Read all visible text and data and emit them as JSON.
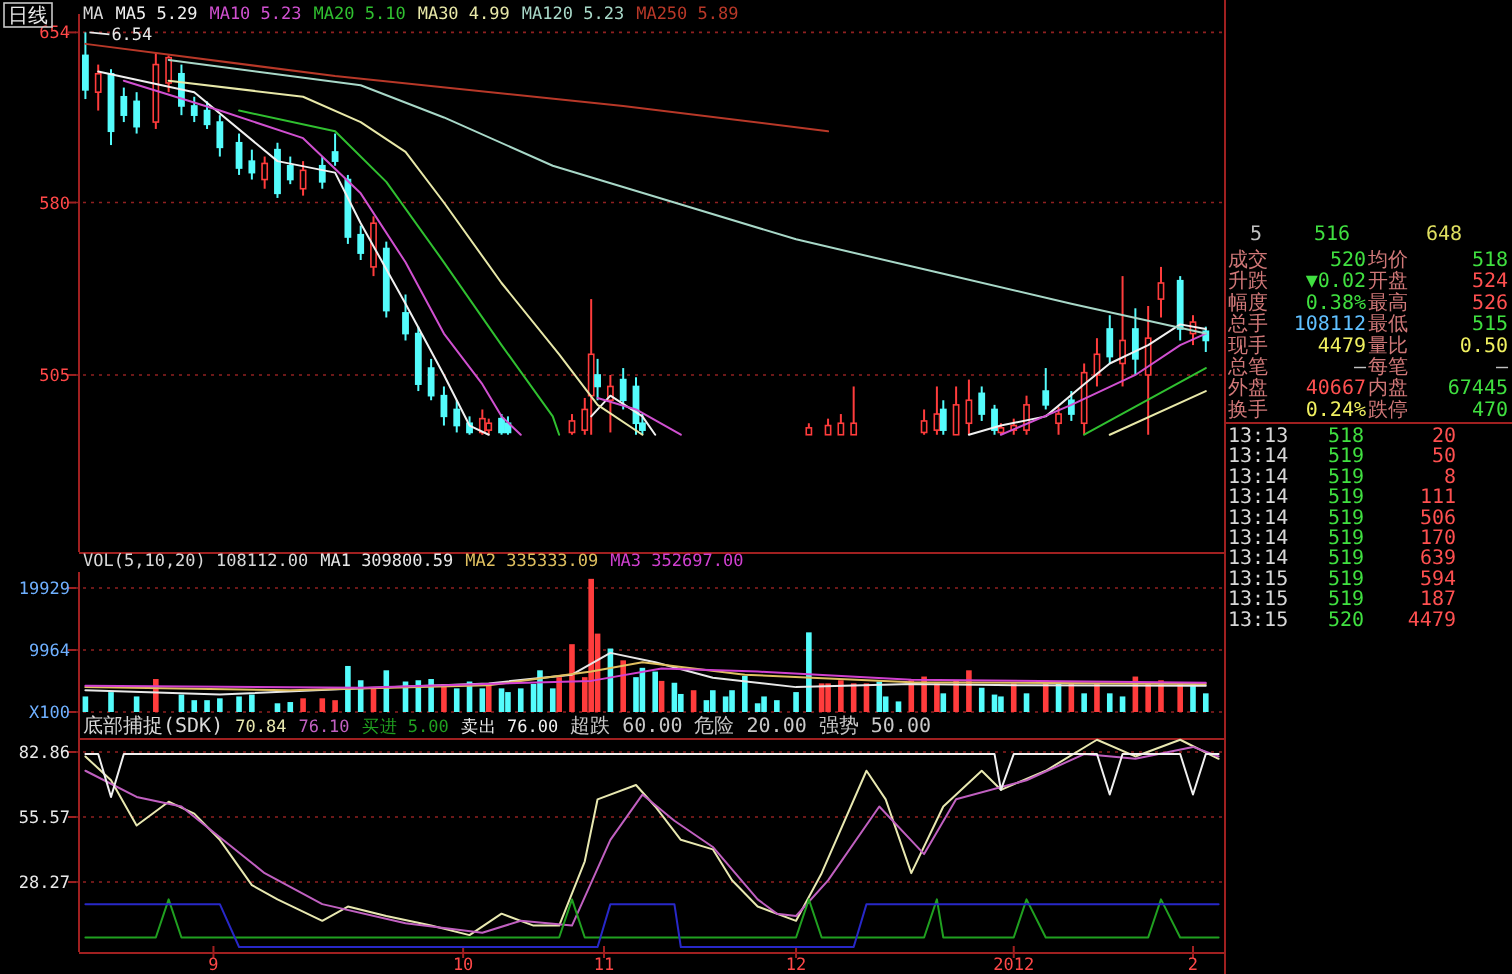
{
  "chart_data": [
    {
      "type": "candlestick",
      "title": "日线",
      "legend_title": "MA",
      "legend": "top left",
      "grid": "y",
      "tick_labels": "y",
      "xlim": [
        "2011-08-11",
        "2012-02-06"
      ],
      "ylim": [
        428,
        662
      ],
      "yticks": [
        654,
        580,
        505
      ],
      "annotations": [
        {
          "text": "6.54",
          "x": "2011-08-12",
          "y": 654
        }
      ],
      "series": [
        {
          "type": "candlestick",
          "color": "#ff3c3c",
          "x": [
            "2011-08-14",
            "2011-08-23",
            "2011-08-25",
            "2011-09-09",
            "2011-09-15",
            "2011-09-26",
            "2011-10-13",
            "2011-10-14",
            "2011-10-27",
            "2011-10-29",
            "2011-10-30",
            "2011-11-02",
            "2011-12-03",
            "2011-12-06",
            "2011-12-08",
            "2011-12-10",
            "2011-12-21",
            "2011-12-23",
            "2011-12-26",
            "2011-12-28",
            "2012-01-02",
            "2012-01-04",
            "2012-01-06",
            "2012-01-11",
            "2012-01-15",
            "2012-01-17",
            "2012-01-21",
            "2012-01-25",
            "2012-01-27",
            "2012-02-01"
          ],
          "ohlc": [
            [
              628,
              640,
              620,
              636
            ],
            [
              615,
              645,
              612,
              640
            ],
            [
              632,
              644,
              628,
              643
            ],
            [
              590,
              600,
              586,
              597
            ],
            [
              586,
              598,
              583,
              594
            ],
            [
              552,
              574,
              548,
              571
            ],
            [
              480,
              490,
              479,
              486
            ],
            [
              481,
              486,
              479,
              484
            ],
            [
              480,
              488,
              479,
              485
            ],
            [
              481,
              495,
              479,
              490
            ],
            [
              496,
              538,
              479,
              514
            ],
            [
              494,
              505,
              480,
              500
            ],
            [
              479,
              484,
              479,
              482
            ],
            [
              479,
              486,
              479,
              483
            ],
            [
              479,
              488,
              479,
              484
            ],
            [
              479,
              500,
              479,
              484
            ],
            [
              480,
              490,
              479,
              485
            ],
            [
              481,
              500,
              479,
              488
            ],
            [
              479,
              500,
              479,
              492
            ],
            [
              484,
              503,
              479,
              494
            ],
            [
              480,
              484,
              479,
              482
            ],
            [
              481,
              486,
              479,
              483
            ],
            [
              481,
              496,
              479,
              492
            ],
            [
              484,
              491,
              479,
              488
            ],
            [
              484,
              510,
              479,
              506
            ],
            [
              505,
              521,
              500,
              514
            ],
            [
              510,
              548,
              500,
              520
            ],
            [
              505,
              535,
              479,
              521
            ],
            [
              538,
              552,
              530,
              545
            ],
            [
              523,
              531,
              518,
              528
            ]
          ]
        },
        {
          "type": "candlestick",
          "color": "#54fcfc",
          "x": [
            "2011-08-12",
            "2011-08-16",
            "2011-08-18",
            "2011-08-20",
            "2011-08-27",
            "2011-08-29",
            "2011-08-31",
            "2011-09-02",
            "2011-09-05",
            "2011-09-07",
            "2011-09-11",
            "2011-09-13",
            "2011-09-18",
            "2011-09-20",
            "2011-09-22",
            "2011-09-24",
            "2011-09-28",
            "2011-10-01",
            "2011-10-03",
            "2011-10-05",
            "2011-10-07",
            "2011-10-09",
            "2011-10-11",
            "2011-10-16",
            "2011-10-17",
            "2011-10-31",
            "2011-11-04",
            "2011-11-06",
            "2011-11-07",
            "2011-12-24",
            "2011-12-30",
            "2012-01-01",
            "2012-01-09",
            "2012-01-13",
            "2012-01-19",
            "2012-01-23",
            "2012-01-30",
            "2012-02-03"
          ],
          "ohlc": [
            [
              644,
              654,
              625,
              629
            ],
            [
              636,
              638,
              605,
              611
            ],
            [
              626,
              630,
              615,
              618
            ],
            [
              624,
              628,
              610,
              613
            ],
            [
              636,
              640,
              618,
              622
            ],
            [
              622,
              626,
              615,
              618
            ],
            [
              620,
              624,
              612,
              614
            ],
            [
              615,
              618,
              600,
              604
            ],
            [
              606,
              610,
              592,
              595
            ],
            [
              598,
              603,
              590,
              593
            ],
            [
              603,
              606,
              582,
              584
            ],
            [
              596,
              600,
              588,
              590
            ],
            [
              596,
              600,
              586,
              589
            ],
            [
              602,
              610,
              596,
              598
            ],
            [
              590,
              592,
              562,
              565
            ],
            [
              566,
              570,
              555,
              558
            ],
            [
              560,
              563,
              530,
              533
            ],
            [
              532,
              540,
              520,
              523
            ],
            [
              523,
              526,
              498,
              501
            ],
            [
              508,
              512,
              494,
              496
            ],
            [
              496,
              500,
              483,
              487
            ],
            [
              490,
              494,
              480,
              483
            ],
            [
              484,
              487,
              479,
              480
            ],
            [
              486,
              488,
              479,
              480
            ],
            [
              484,
              487,
              479,
              480
            ],
            [
              505,
              512,
              494,
              500
            ],
            [
              503,
              508,
              490,
              494
            ],
            [
              500,
              504,
              479,
              484
            ],
            [
              484,
              488,
              479,
              481
            ],
            [
              490,
              494,
              479,
              481
            ],
            [
              497,
              500,
              485,
              488
            ],
            [
              490,
              492,
              479,
              481
            ],
            [
              498,
              508,
              490,
              492
            ],
            [
              494,
              498,
              485,
              488
            ],
            [
              525,
              531,
              510,
              513
            ],
            [
              525,
              534,
              505,
              512
            ],
            [
              546,
              548,
              520,
              525
            ],
            [
              524,
              526,
              515,
              520
            ]
          ]
        },
        {
          "type": "line",
          "name": "MA5 5.29",
          "color": "#f0f0f0",
          "x": [
            "2011-08-14",
            "2011-08-29",
            "2011-09-11",
            "2011-09-20",
            "2011-09-24",
            "2011-10-01",
            "2011-10-07",
            "2011-10-11",
            "2011-10-14",
            "2011-10-22",
            "2011-10-30",
            "2011-11-02",
            "2011-11-07",
            "2011-11-09",
            "2011-12-01",
            "2011-12-28",
            "2012-01-02",
            "2012-01-09",
            "2012-01-15",
            "2012-01-19",
            "2012-01-25",
            "2012-01-30",
            "2012-02-03"
          ],
          "values": [
            637,
            628,
            598,
            593,
            571,
            536,
            505,
            483,
            479,
            null,
            487,
            496,
            487,
            479,
            null,
            479,
            483,
            487,
            501,
            510,
            518,
            527,
            525
          ]
        },
        {
          "type": "line",
          "name": "MA10 5.23",
          "color": "#d050d0",
          "x": [
            "2011-08-18",
            "2011-09-02",
            "2011-09-15",
            "2011-09-24",
            "2011-10-01",
            "2011-10-07",
            "2011-10-13",
            "2011-10-16",
            "2011-10-19",
            "2011-10-25",
            "2011-10-31",
            "2011-11-06",
            "2011-11-13",
            "2011-12-01",
            "2012-01-02",
            "2012-01-13",
            "2012-01-23",
            "2012-01-30",
            "2012-02-03"
          ],
          "values": [
            633,
            620,
            608,
            584,
            554,
            523,
            501,
            487,
            479,
            null,
            495,
            490,
            479,
            null,
            479,
            492,
            505,
            518,
            523
          ]
        },
        {
          "type": "line",
          "name": "MA20 5.10",
          "color": "#30c030",
          "x": [
            "2011-09-05",
            "2011-09-20",
            "2011-09-28",
            "2011-10-07",
            "2011-10-16",
            "2011-10-24",
            "2011-10-25",
            "2011-12-01",
            "2012-01-15",
            "2012-02-03"
          ],
          "values": [
            620,
            611,
            589,
            554,
            518,
            487,
            479,
            null,
            479,
            508
          ]
        },
        {
          "type": "line",
          "name": "MA30 4.99",
          "color": "#e8e8a8",
          "x": [
            "2011-08-25",
            "2011-09-15",
            "2011-09-24",
            "2011-10-01",
            "2011-10-07",
            "2011-10-16",
            "2011-10-25",
            "2011-10-31",
            "2011-11-07",
            "2011-12-01",
            "2012-01-19",
            "2012-02-03"
          ],
          "values": [
            633,
            626,
            615,
            602,
            580,
            545,
            514,
            492,
            479,
            null,
            479,
            498
          ]
        },
        {
          "type": "line",
          "name": "MA120 5.23",
          "color": "#a8d8c8",
          "x": [
            "2011-08-25",
            "2011-09-24",
            "2011-10-07",
            "2011-10-24",
            "2011-11-12",
            "2011-12-01",
            "2011-12-24",
            "2012-01-13",
            "2012-02-03"
          ],
          "values": [
            642,
            631,
            617,
            596,
            580,
            564,
            549,
            536,
            523
          ]
        },
        {
          "type": "line",
          "name": "MA250 5.89",
          "color": "#b83828",
          "x": [
            "2011-08-12",
            "2011-09-20",
            "2011-11-04",
            "2011-12-06"
          ],
          "values": [
            649,
            635,
            622,
            611
          ]
        }
      ]
    },
    {
      "type": "bar",
      "title": "VOL(5,10,20)  108112.00",
      "legend": "top left",
      "grid": "y",
      "tick_labels": "y",
      "xlim": [
        "2011-08-11",
        "2012-02-06"
      ],
      "ylim": [
        0,
        22500
      ],
      "yticks": [
        19929,
        9964,
        {
          "value": 0,
          "label": "X100"
        }
      ],
      "series": [
        {
          "color": "#ff3c3c",
          "x": [
            "2011-08-23",
            "2011-09-15",
            "2011-09-18",
            "2011-09-20",
            "2011-09-26",
            "2011-10-07",
            "2011-10-14",
            "2011-10-25",
            "2011-10-27",
            "2011-10-29",
            "2011-10-30",
            "2011-10-31",
            "2011-11-04",
            "2011-11-10",
            "2011-11-15",
            "2011-12-05",
            "2011-12-06",
            "2011-12-08",
            "2011-12-10",
            "2011-12-12",
            "2011-12-19",
            "2011-12-21",
            "2011-12-23",
            "2011-12-26",
            "2011-12-28",
            "2012-01-04",
            "2012-01-09",
            "2012-01-13",
            "2012-01-17",
            "2012-01-23",
            "2012-01-25",
            "2012-01-27",
            "2012-01-30"
          ],
          "values": [
            5300,
            2200,
            2200,
            1900,
            4000,
            4500,
            4500,
            5600,
            10900,
            5600,
            21400,
            12600,
            8300,
            5000,
            3500,
            4600,
            4600,
            5100,
            4600,
            4600,
            5100,
            5700,
            4600,
            5100,
            6700,
            4600,
            5100,
            4600,
            4600,
            5700,
            4600,
            5100,
            4600
          ]
        },
        {
          "color": "#54fcfc",
          "x": [
            "2011-08-12",
            "2011-08-16",
            "2011-08-20",
            "2011-08-27",
            "2011-08-29",
            "2011-08-31",
            "2011-09-02",
            "2011-09-05",
            "2011-09-07",
            "2011-09-11",
            "2011-09-13",
            "2011-09-22",
            "2011-09-24",
            "2011-09-28",
            "2011-10-01",
            "2011-10-03",
            "2011-10-05",
            "2011-10-09",
            "2011-10-11",
            "2011-10-13",
            "2011-10-16",
            "2011-10-17",
            "2011-10-19",
            "2011-10-21",
            "2011-10-22",
            "2011-10-24",
            "2011-11-02",
            "2011-11-06",
            "2011-11-07",
            "2011-11-09",
            "2011-11-12",
            "2011-11-13",
            "2011-11-17",
            "2011-11-18",
            "2011-11-20",
            "2011-11-21",
            "2011-11-23",
            "2011-11-25",
            "2011-11-26",
            "2011-11-28",
            "2011-12-01",
            "2011-12-03",
            "2011-12-14",
            "2011-12-15",
            "2011-12-17",
            "2011-12-24",
            "2011-12-30",
            "2012-01-01",
            "2012-01-02",
            "2012-01-06",
            "2012-01-11",
            "2012-01-15",
            "2012-01-19",
            "2012-01-21",
            "2012-02-01",
            "2012-02-03"
          ],
          "values": [
            2500,
            3200,
            2500,
            2800,
            1900,
            1900,
            2200,
            2500,
            2800,
            1400,
            1600,
            7400,
            5100,
            6700,
            4900,
            5100,
            5300,
            3800,
            4900,
            3800,
            3800,
            3200,
            3800,
            4500,
            6700,
            3800,
            10200,
            5600,
            7100,
            6500,
            4700,
            2900,
            1900,
            3500,
            2500,
            3500,
            5800,
            1400,
            2500,
            1900,
            3200,
            12800,
            4900,
            2500,
            1700,
            3000,
            3900,
            2800,
            2500,
            3000,
            4900,
            3000,
            3000,
            2500,
            4600,
            3000
          ]
        },
        {
          "type": "line",
          "name": "MA1 309800.59",
          "color": "#e8e8e8",
          "x": [
            "2011-08-12",
            "2011-09-02",
            "2011-09-24",
            "2011-10-14",
            "2011-10-27",
            "2011-11-02",
            "2011-11-09",
            "2011-11-18",
            "2011-12-01",
            "2011-12-19",
            "2012-01-06",
            "2012-02-03"
          ],
          "values": [
            3500,
            2800,
            3800,
            4600,
            6000,
            9500,
            8000,
            5500,
            4000,
            4500,
            4300,
            4200
          ]
        },
        {
          "type": "line",
          "name": "MA2 335333.09",
          "color": "#e0c060",
          "x": [
            "2011-08-12",
            "2011-09-13",
            "2011-10-14",
            "2011-10-30",
            "2011-11-07",
            "2011-11-23",
            "2011-12-19",
            "2012-02-03"
          ],
          "values": [
            4000,
            3500,
            4300,
            6500,
            8000,
            6000,
            4800,
            4500
          ]
        },
        {
          "type": "line",
          "name": "MA3 352697.00",
          "color": "#d040d0",
          "x": [
            "2011-08-12",
            "2011-09-24",
            "2011-10-30",
            "2011-11-10",
            "2011-11-25",
            "2011-12-19",
            "2012-02-03"
          ],
          "values": [
            4200,
            3900,
            5000,
            7000,
            6500,
            5200,
            4700
          ]
        }
      ]
    },
    {
      "type": "line",
      "title": "底部捕捉(SDK)",
      "legend": "top left",
      "grid": "y",
      "xlim": [
        "2011-08-11",
        "2012-02-06"
      ],
      "ylim": [
        0,
        90
      ],
      "yticks": [
        82.86,
        55.57,
        28.27
      ],
      "xticks": [
        {
          "value": "2011-09-01",
          "label": "9"
        },
        {
          "value": "2011-10-10",
          "label": "10"
        },
        {
          "value": "2011-11-01",
          "label": "11"
        },
        {
          "value": "2011-12-01",
          "label": "12"
        },
        {
          "value": "2012-01-04",
          "label": "2012"
        },
        {
          "value": "2012-02-01",
          "label": "2"
        }
      ],
      "annotations": [
        "超跌 60.00",
        "危险 20.00",
        "强势 50.00"
      ],
      "series": [
        {
          "name": "70.84",
          "color": "#e8e8b0",
          "x": [
            "2011-08-12",
            "2011-08-16",
            "2011-08-20",
            "2011-08-25",
            "2011-08-29",
            "2011-09-02",
            "2011-09-07",
            "2011-09-11",
            "2011-09-18",
            "2011-09-22",
            "2011-09-28",
            "2011-10-05",
            "2011-10-11",
            "2011-10-16",
            "2011-10-21",
            "2011-10-25",
            "2011-10-29",
            "2011-10-31",
            "2011-11-06",
            "2011-11-09",
            "2011-11-13",
            "2011-11-18",
            "2011-11-21",
            "2011-11-25",
            "2011-12-01",
            "2011-12-05",
            "2011-12-12",
            "2011-12-15",
            "2011-12-19",
            "2011-12-24",
            "2011-12-30",
            "2012-01-02",
            "2012-01-09",
            "2012-01-17",
            "2012-01-23",
            "2012-01-30",
            "2012-02-05"
          ],
          "values": [
            81,
            71,
            52,
            62,
            57,
            46,
            27,
            21,
            12,
            18,
            14,
            10,
            6,
            15,
            10,
            10,
            37,
            63,
            69,
            60,
            46,
            42,
            29,
            18,
            12,
            32,
            75,
            63,
            32,
            60,
            75,
            67,
            75,
            88,
            81,
            88,
            80
          ]
        },
        {
          "name": "76.10",
          "color": "#c060c0",
          "x": [
            "2011-08-12",
            "2011-08-20",
            "2011-08-27",
            "2011-09-09",
            "2011-09-18",
            "2011-10-01",
            "2011-10-13",
            "2011-10-19",
            "2011-10-27",
            "2011-11-02",
            "2011-11-07",
            "2011-11-12",
            "2011-11-18",
            "2011-11-25",
            "2011-11-28",
            "2011-12-01",
            "2011-12-06",
            "2011-12-14",
            "2011-12-21",
            "2011-12-26",
            "2012-01-06",
            "2012-01-15",
            "2012-01-23",
            "2012-02-01",
            "2012-02-05"
          ],
          "values": [
            75,
            64,
            60,
            32,
            19,
            11,
            7,
            12,
            10,
            46,
            65,
            54,
            43,
            21,
            15,
            14,
            29,
            60,
            40,
            63,
            71,
            82,
            80,
            85,
            81
          ]
        },
        {
          "name": "买进 5.00",
          "color": "#20a020",
          "x": [
            "2011-08-12",
            "2011-08-23",
            "2011-08-25",
            "2011-08-27",
            "2011-10-25",
            "2011-10-27",
            "2011-10-29",
            "2011-12-01",
            "2011-12-03",
            "2011-12-05",
            "2011-12-21",
            "2011-12-23",
            "2011-12-24",
            "2012-01-04",
            "2012-01-06",
            "2012-01-09",
            "2012-01-25",
            "2012-01-27",
            "2012-01-30",
            "2012-02-05"
          ],
          "values": [
            5,
            5,
            21,
            5,
            5,
            21,
            5,
            5,
            21,
            5,
            5,
            21,
            5,
            5,
            21,
            5,
            5,
            21,
            5,
            5
          ]
        },
        {
          "name": "卖出 76.00",
          "color": "#f0f0f0",
          "x": [
            "2011-08-12",
            "2011-08-14",
            "2011-08-16",
            "2011-08-18",
            "2012-01-01",
            "2012-01-02",
            "2012-01-04",
            "2012-01-17",
            "2012-01-19",
            "2012-01-21",
            "2012-01-30",
            "2012-02-01",
            "2012-02-03",
            "2012-02-05"
          ],
          "values": [
            82,
            82,
            64,
            82,
            82,
            67,
            82,
            82,
            65,
            82,
            82,
            65,
            82,
            82
          ]
        },
        {
          "color": "#2828c8",
          "x": [
            "2011-08-12",
            "2011-09-02",
            "2011-09-05",
            "2011-10-31",
            "2011-11-02",
            "2011-11-12",
            "2011-11-13",
            "2011-12-10",
            "2011-12-12",
            "2012-02-05"
          ],
          "values": [
            19,
            19,
            1,
            1,
            19,
            19,
            1,
            1,
            19,
            19
          ]
        }
      ]
    },
    {
      "type": "other",
      "annotations": [
        "5",
        "516",
        "648",
        "成交",
        "520",
        "均价",
        "518",
        "升跌",
        "▼0.02",
        "开盘",
        "524",
        "幅度",
        "0.38%",
        "最高",
        "526",
        "总手",
        "108112",
        "最低",
        "515",
        "现手",
        "4479",
        "量比",
        "0.50",
        "总笔",
        "—",
        "每笔",
        "—",
        "外盘",
        "40667",
        "内盘",
        "67445",
        "换手",
        "0.24%",
        "跌停",
        "470",
        "13:13",
        "518",
        "20",
        "13:14",
        "519",
        "50",
        "13:14",
        "519",
        "8",
        "13:14",
        "519",
        "111",
        "13:14",
        "519",
        "506",
        "13:14",
        "519",
        "170",
        "13:14",
        "519",
        "639",
        "13:15",
        "519",
        "594",
        "13:15",
        "519",
        "187",
        "13:15",
        "520",
        "4479"
      ]
    }
  ]
}
